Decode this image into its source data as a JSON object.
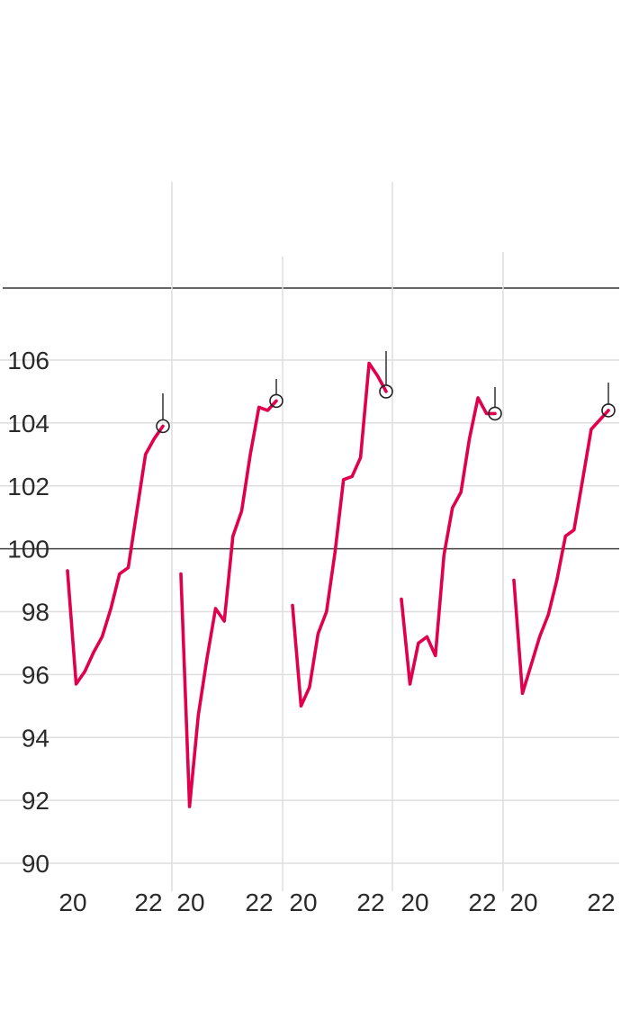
{
  "chart_data": {
    "type": "line",
    "title": "",
    "xlabel": "",
    "ylabel": "",
    "ylim": [
      90,
      107
    ],
    "yticks": [
      "90",
      "92",
      "94",
      "96",
      "98",
      "100",
      "102",
      "104",
      "106"
    ],
    "reference_line": 100,
    "grid": true,
    "line_color": "#e0004d",
    "marker_color": "#222222",
    "panels": [
      {
        "x_tick_labels": [
          "20",
          "22"
        ],
        "values": [
          99.3,
          95.7,
          96.1,
          96.7,
          97.2,
          98.1,
          99.2,
          99.4,
          101.2,
          103.0,
          103.5,
          103.9
        ]
      },
      {
        "x_tick_labels": [
          "20",
          "22"
        ],
        "values": [
          99.2,
          91.8,
          94.7,
          96.5,
          98.1,
          97.7,
          100.4,
          101.2,
          103.0,
          104.5,
          104.4,
          104.7
        ]
      },
      {
        "x_tick_labels": [
          "20",
          "22"
        ],
        "values": [
          98.2,
          95.0,
          95.6,
          97.3,
          98.0,
          99.9,
          102.2,
          102.3,
          102.9,
          105.9,
          105.5,
          105.0
        ]
      },
      {
        "x_tick_labels": [
          "20",
          "22"
        ],
        "values": [
          98.4,
          95.7,
          97.0,
          97.2,
          96.6,
          99.8,
          101.3,
          101.8,
          103.5,
          104.8,
          104.3,
          104.3
        ]
      },
      {
        "x_tick_labels": [
          "20",
          "22"
        ],
        "values": [
          99.0,
          95.4,
          96.3,
          97.2,
          97.9,
          99.0,
          100.4,
          100.6,
          102.2,
          103.8,
          104.1,
          104.4
        ]
      }
    ]
  }
}
